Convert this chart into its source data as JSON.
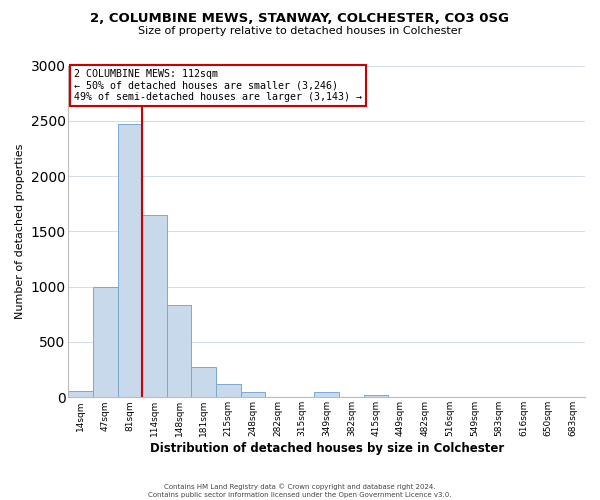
{
  "title": "2, COLUMBINE MEWS, STANWAY, COLCHESTER, CO3 0SG",
  "subtitle": "Size of property relative to detached houses in Colchester",
  "xlabel": "Distribution of detached houses by size in Colchester",
  "ylabel": "Number of detached properties",
  "bar_labels": [
    "14sqm",
    "47sqm",
    "81sqm",
    "114sqm",
    "148sqm",
    "181sqm",
    "215sqm",
    "248sqm",
    "282sqm",
    "315sqm",
    "349sqm",
    "382sqm",
    "415sqm",
    "449sqm",
    "482sqm",
    "516sqm",
    "549sqm",
    "583sqm",
    "616sqm",
    "650sqm",
    "683sqm"
  ],
  "bar_values": [
    55,
    1000,
    2470,
    1650,
    830,
    270,
    120,
    45,
    0,
    0,
    45,
    0,
    20,
    0,
    0,
    0,
    0,
    0,
    0,
    0,
    0
  ],
  "bar_color": "#c9d9ec",
  "bar_edge_color": "#7aaacf",
  "vline_x_after_index": 2,
  "vline_color": "#cc0000",
  "annotation_title": "2 COLUMBINE MEWS: 112sqm",
  "annotation_line1": "← 50% of detached houses are smaller (3,246)",
  "annotation_line2": "49% of semi-detached houses are larger (3,143) →",
  "annotation_box_color": "#ffffff",
  "annotation_box_edge": "#cc0000",
  "footer1": "Contains HM Land Registry data © Crown copyright and database right 2024.",
  "footer2": "Contains public sector information licensed under the Open Government Licence v3.0.",
  "ylim": [
    0,
    3000
  ],
  "yticks": [
    0,
    500,
    1000,
    1500,
    2000,
    2500,
    3000
  ],
  "background_color": "#ffffff",
  "grid_color": "#d4dde8"
}
